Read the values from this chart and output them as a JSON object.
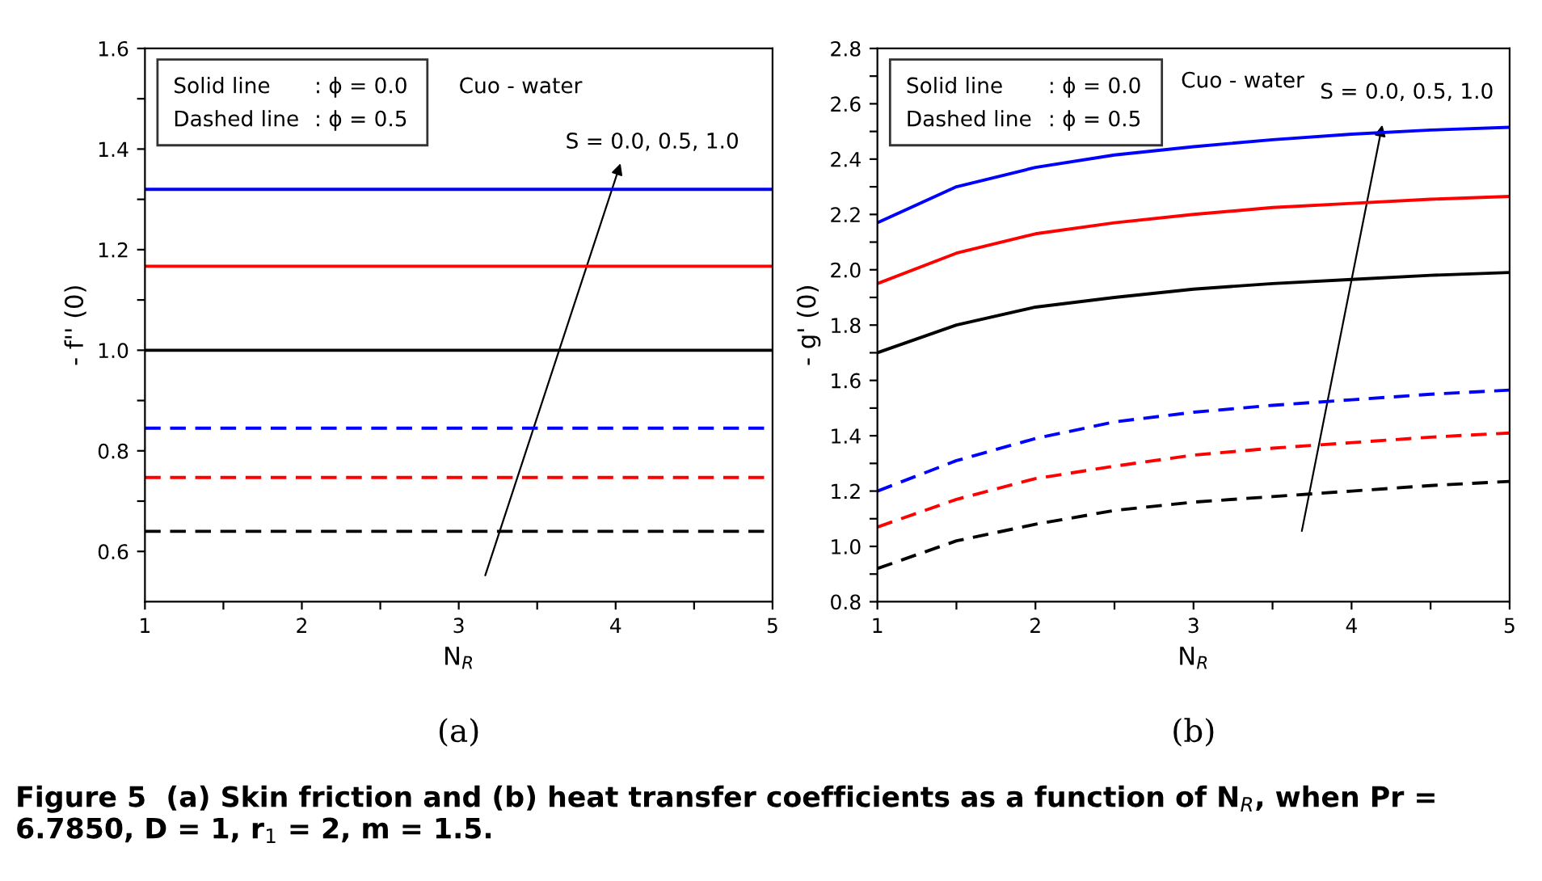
{
  "chart_data": [
    {
      "type": "line",
      "xlabel": "N$_{R}$",
      "ylabel": "- f'' (0)",
      "subtitle": "(a)",
      "x": [
        1,
        5
      ],
      "xlim": [
        1,
        5
      ],
      "ylim": [
        0.5,
        1.6
      ],
      "xticks": [
        1,
        {
          "value": 1.5,
          "label": null
        },
        2,
        {
          "value": 2.5,
          "label": null
        },
        3,
        {
          "value": 3.5,
          "label": null
        },
        4,
        {
          "value": 4.5,
          "label": null
        },
        5
      ],
      "yticks": [
        0.6,
        {
          "value": 0.7,
          "label": null
        },
        0.8,
        {
          "value": 0.9,
          "label": null
        },
        {
          "value": 1.0,
          "label": "1.0"
        },
        {
          "value": 1.1,
          "label": null
        },
        1.2,
        {
          "value": 1.3,
          "label": null
        },
        1.4,
        {
          "value": 1.5,
          "label": null
        },
        1.6
      ],
      "grid": false,
      "legend": false,
      "series": [
        {
          "color": "#0000ff",
          "line_style": "solid",
          "values": [
            1.32,
            1.32
          ]
        },
        {
          "color": "#ff0000",
          "line_style": "solid",
          "values": [
            1.167,
            1.167
          ]
        },
        {
          "color": "#000000",
          "line_style": "solid",
          "values": [
            1.0,
            1.0
          ]
        },
        {
          "color": "#0000ff",
          "line_style": "dashed",
          "values": [
            0.845,
            0.845
          ]
        },
        {
          "color": "#ff0000",
          "line_style": "dashed",
          "values": [
            0.747,
            0.747
          ]
        },
        {
          "color": "#000000",
          "line_style": "dashed",
          "values": [
            0.64,
            0.64
          ]
        }
      ],
      "annotations": [
        "Solid line",
        ": ϕ = 0.0",
        "Dashed line",
        ": ϕ = 0.5",
        "Cuo - water",
        "S = 0.0, 0.5, 1.0"
      ]
    },
    {
      "type": "line",
      "xlabel": "N$_{R}$",
      "ylabel": "- g' (0)",
      "subtitle": "(b)",
      "x": [
        1,
        1.5,
        2,
        2.5,
        3,
        3.5,
        4,
        4.5,
        5
      ],
      "xlim": [
        1,
        5
      ],
      "ylim": [
        0.8,
        2.8
      ],
      "xticks": [
        1,
        {
          "value": 1.5,
          "label": null
        },
        2,
        {
          "value": 2.5,
          "label": null
        },
        3,
        {
          "value": 3.5,
          "label": null
        },
        4,
        {
          "value": 4.5,
          "label": null
        },
        5
      ],
      "yticks": [
        0.8,
        {
          "value": 0.9,
          "label": null
        },
        {
          "value": 1.0,
          "label": "1.0"
        },
        {
          "value": 1.1,
          "label": null
        },
        1.2,
        {
          "value": 1.3,
          "label": null
        },
        1.4,
        {
          "value": 1.5,
          "label": null
        },
        1.6,
        {
          "value": 1.7,
          "label": null
        },
        1.8,
        {
          "value": 1.9,
          "label": null
        },
        {
          "value": 2.0,
          "label": "2.0"
        },
        {
          "value": 2.1,
          "label": null
        },
        2.2,
        {
          "value": 2.3,
          "label": null
        },
        2.4,
        {
          "value": 2.5,
          "label": null
        },
        2.6,
        {
          "value": 2.7,
          "label": null
        },
        2.8
      ],
      "grid": false,
      "legend": false,
      "series": [
        {
          "color": "#0000ff",
          "line_style": "solid",
          "values": [
            2.17,
            2.3,
            2.37,
            2.415,
            2.445,
            2.47,
            2.49,
            2.505,
            2.515
          ]
        },
        {
          "color": "#ff0000",
          "line_style": "solid",
          "values": [
            1.95,
            2.06,
            2.13,
            2.17,
            2.2,
            2.225,
            2.24,
            2.255,
            2.265
          ]
        },
        {
          "color": "#000000",
          "line_style": "solid",
          "values": [
            1.7,
            1.8,
            1.865,
            1.9,
            1.93,
            1.95,
            1.965,
            1.98,
            1.99
          ]
        },
        {
          "color": "#0000ff",
          "line_style": "dashed",
          "values": [
            1.2,
            1.31,
            1.39,
            1.45,
            1.485,
            1.51,
            1.53,
            1.55,
            1.565
          ]
        },
        {
          "color": "#ff0000",
          "line_style": "dashed",
          "values": [
            1.07,
            1.17,
            1.245,
            1.29,
            1.33,
            1.355,
            1.375,
            1.395,
            1.41
          ]
        },
        {
          "color": "#000000",
          "line_style": "dashed",
          "values": [
            0.92,
            1.02,
            1.08,
            1.13,
            1.16,
            1.18,
            1.2,
            1.22,
            1.235
          ]
        }
      ],
      "annotations": [
        "Solid line",
        ": ϕ = 0.0",
        "Dashed line",
        ": ϕ = 0.5",
        "Cuo - water",
        "S = 0.0, 0.5, 1.0",
        "Figure 5  (a) Skin friction and (b) heat transfer coefficients as a function of N$_{R}$, when Pr = 6.7850, D = 1, r$_{1}$ = 2, m = 1.5."
      ]
    }
  ]
}
